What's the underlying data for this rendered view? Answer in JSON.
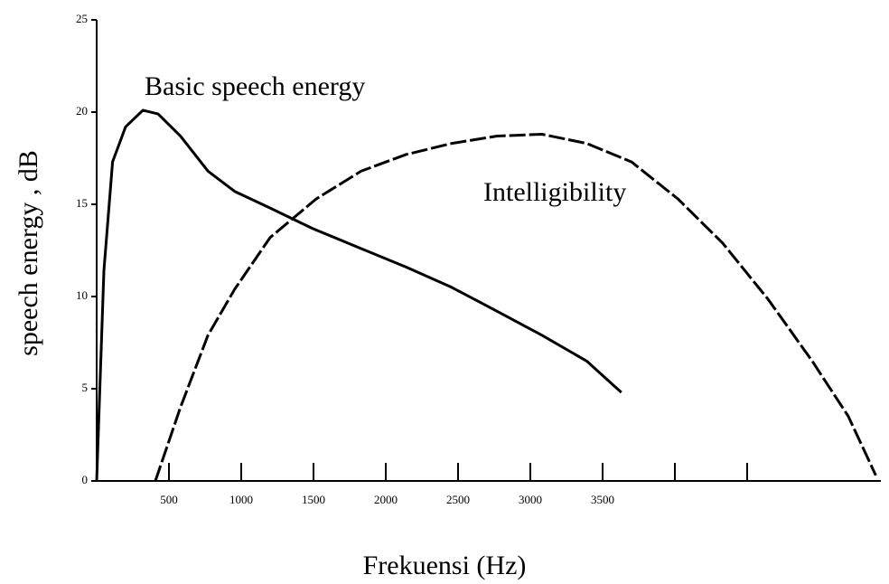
{
  "chart_data": {
    "type": "line",
    "x_label": "Frekuensi (Hz)",
    "y_label": "speech energy , dB",
    "xlim": [
      0,
      5400
    ],
    "ylim": [
      0,
      25
    ],
    "xticks": [
      500,
      1000,
      1500,
      2000,
      2500,
      3000,
      3500
    ],
    "xminor_ticks": [
      4000,
      4500
    ],
    "yticks": [
      0,
      5,
      10,
      15,
      20,
      25
    ],
    "grid": false,
    "series": [
      {
        "name": "Basic speech energy",
        "color": "#000000",
        "dash": false,
        "x": [
          0,
          50,
          110,
          200,
          320,
          425,
          580,
          770,
          955,
          1200,
          1490,
          1830,
          2140,
          2455,
          2770,
          3080,
          3390,
          3630
        ],
        "values": [
          0,
          11.4,
          17.3,
          19.2,
          20.1,
          19.9,
          18.7,
          16.8,
          15.7,
          14.8,
          13.7,
          12.6,
          11.6,
          10.5,
          9.2,
          7.9,
          6.5,
          4.8
        ]
      },
      {
        "name": "Intelligibility",
        "color": "#000000",
        "dash": true,
        "x": [
          406,
          580,
          770,
          955,
          1200,
          1520,
          1830,
          2140,
          2455,
          2770,
          3080,
          3390,
          3700,
          4020,
          4330,
          4640,
          4950,
          5200,
          5390
        ],
        "values": [
          0,
          4.0,
          7.9,
          10.4,
          13.2,
          15.3,
          16.8,
          17.7,
          18.3,
          18.7,
          18.8,
          18.3,
          17.3,
          15.3,
          12.9,
          9.9,
          6.5,
          3.5,
          0.3
        ]
      }
    ]
  }
}
